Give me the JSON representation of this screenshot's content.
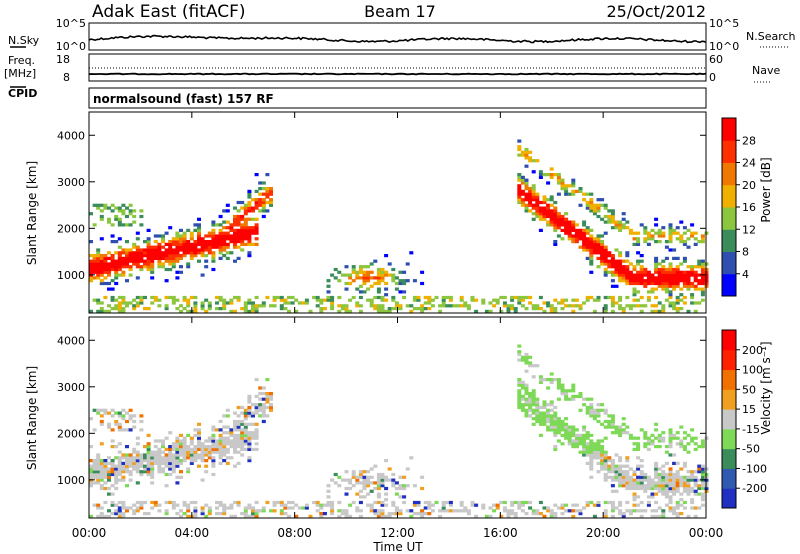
{
  "header": {
    "site": "Adak East (fitACF)",
    "beam": "Beam 17",
    "date": "25/Oct/2012"
  },
  "strip_labels": {
    "nsky": "N.Sky",
    "nsearch": "N.Search",
    "freq": "Freq.",
    "freq_unit": "[MHz]",
    "nave": "Nave",
    "cpid": "CPID",
    "tick_1e5_left": "10^5",
    "tick_1e0_left": "10^0",
    "tick_1e5_right": "10^5",
    "tick_1e0_right": "10^0",
    "freq_ticks": [
      "18",
      "8"
    ],
    "nave_ticks": [
      "60",
      "0"
    ]
  },
  "cpid_text": "normalsound (fast) 157 RF",
  "chart_data": [
    {
      "type": "heatmap",
      "panel": "power",
      "ylabel": "Slant Range [km]",
      "xlabel": "",
      "colorbar_label": "Power [dB]",
      "colorbar_ticks": [
        "4",
        "8",
        "12",
        "16",
        "20",
        "24",
        "28"
      ],
      "colorbar_colors": [
        "#0000ff",
        "#2f4fb0",
        "#3a8c5a",
        "#8cc63f",
        "#f0b000",
        "#f07800",
        "#ff3000",
        "#ff0000"
      ],
      "yticks": [
        "1000",
        "2000",
        "3000",
        "4000"
      ],
      "ylim": [
        180,
        4500
      ],
      "xlim": [
        0,
        24
      ],
      "grid": false
    },
    {
      "type": "heatmap",
      "panel": "velocity",
      "ylabel": "Slant Range [km]",
      "xlabel": "Time UT",
      "colorbar_label": "Velocity [m s⁻¹]",
      "colorbar_ticks": [
        "200",
        "100",
        "50",
        "15",
        "-15",
        "-50",
        "-100",
        "-200"
      ],
      "colorbar_colors": [
        "#2030c0",
        "#2f5ab0",
        "#3a8c5a",
        "#7ed957",
        "#c8c8c8",
        "#f0a020",
        "#f07000",
        "#ff2000",
        "#ff0000"
      ],
      "xticks": [
        "00:00",
        "04:00",
        "08:00",
        "12:00",
        "16:00",
        "20:00",
        "00:00"
      ],
      "yticks": [
        "1000",
        "2000",
        "3000",
        "4000"
      ],
      "ylim": [
        180,
        4500
      ],
      "xlim": [
        0,
        24
      ],
      "grid": false
    }
  ]
}
